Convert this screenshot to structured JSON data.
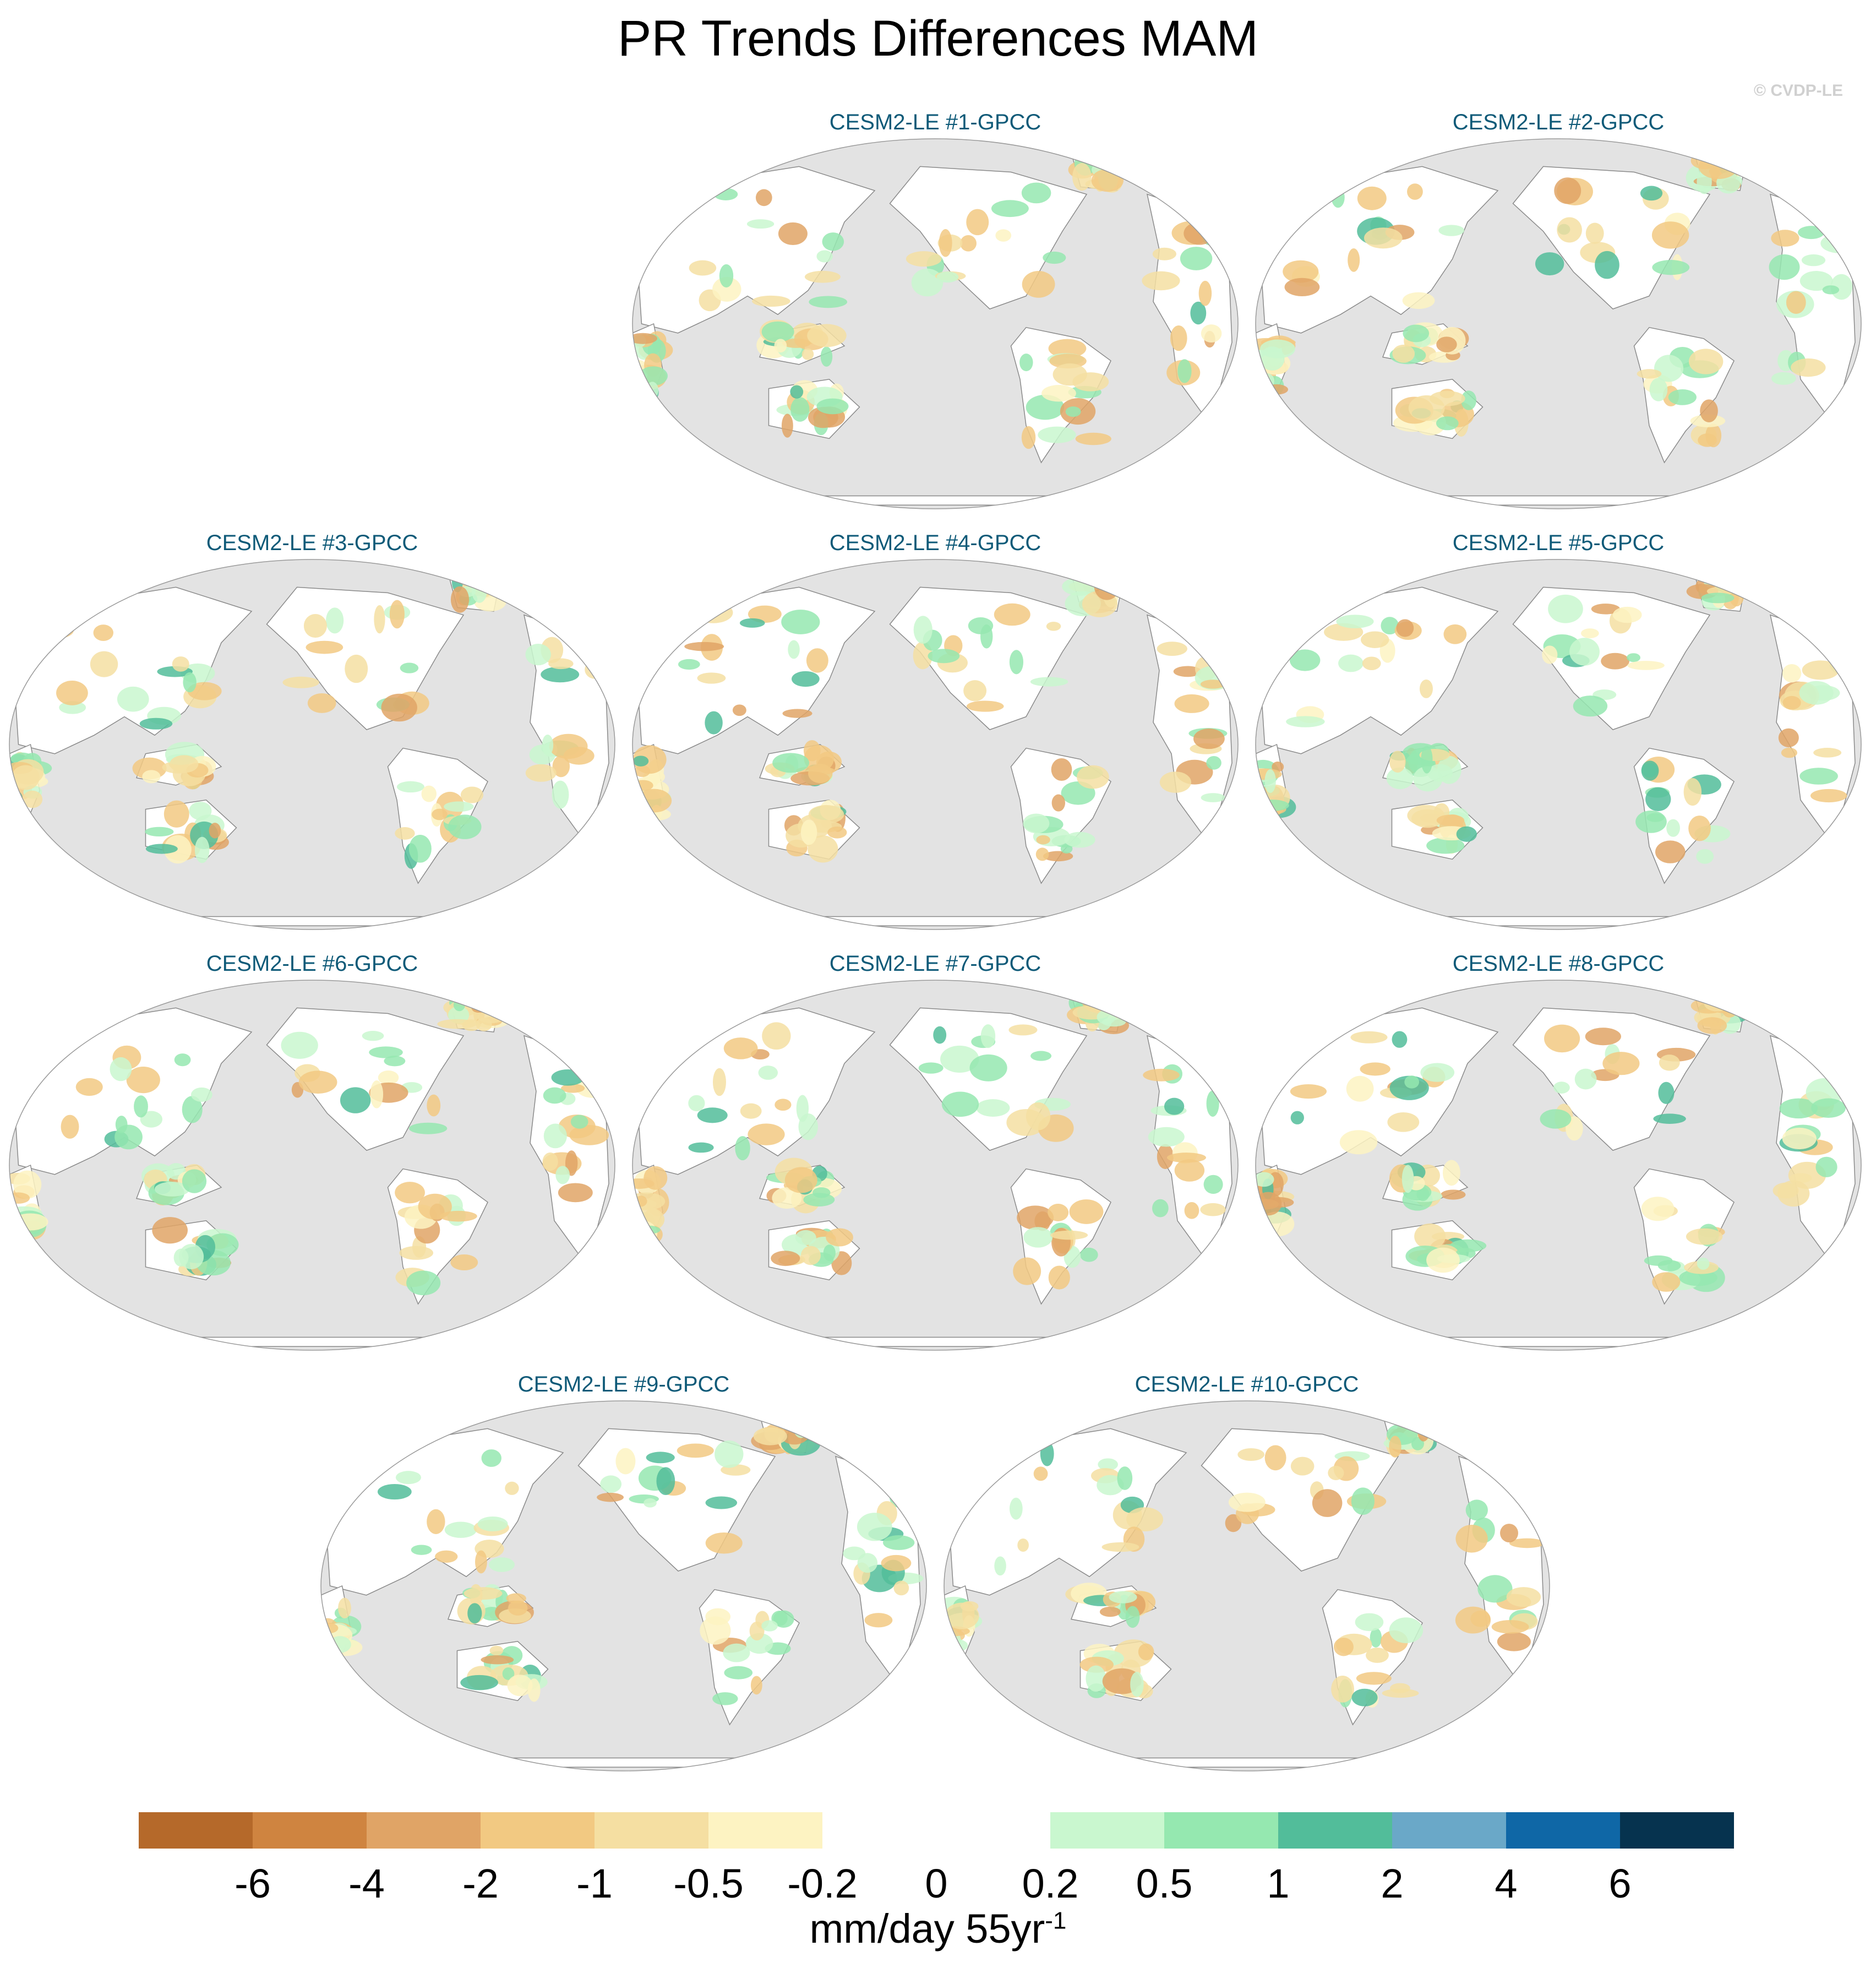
{
  "title": "PR Trends Differences MAM",
  "copyright": "© CVDP-LE",
  "panels": [
    {
      "label": "CESM2-LE #1-GPCC"
    },
    {
      "label": "CESM2-LE #2-GPCC"
    },
    {
      "label": "CESM2-LE #3-GPCC"
    },
    {
      "label": "CESM2-LE #4-GPCC"
    },
    {
      "label": "CESM2-LE #5-GPCC"
    },
    {
      "label": "CESM2-LE #6-GPCC"
    },
    {
      "label": "CESM2-LE #7-GPCC"
    },
    {
      "label": "CESM2-LE #8-GPCC"
    },
    {
      "label": "CESM2-LE #9-GPCC"
    },
    {
      "label": "CESM2-LE #10-GPCC"
    }
  ],
  "colorbar": {
    "colors": [
      "#b5692a",
      "#cf8440",
      "#e0a466",
      "#f2c982",
      "#f5dfa2",
      "#fdf3c2",
      "#ffffff",
      "#ffffff",
      "#c9f7cf",
      "#95e8b0",
      "#52bd9a",
      "#6aa8c8",
      "#0f67a6",
      "#06334f"
    ],
    "ticks": [
      "-6",
      "-4",
      "-2",
      "-1",
      "-0.5",
      "-0.2",
      "0",
      "0.2",
      "0.5",
      "1",
      "2",
      "4",
      "6"
    ],
    "unit_text": "mm/day 55yr",
    "unit_sup": "-1"
  },
  "map_colors": {
    "ocean": "#e3e3e3",
    "land": "#ffffff",
    "coast": "#8a8a8a"
  }
}
